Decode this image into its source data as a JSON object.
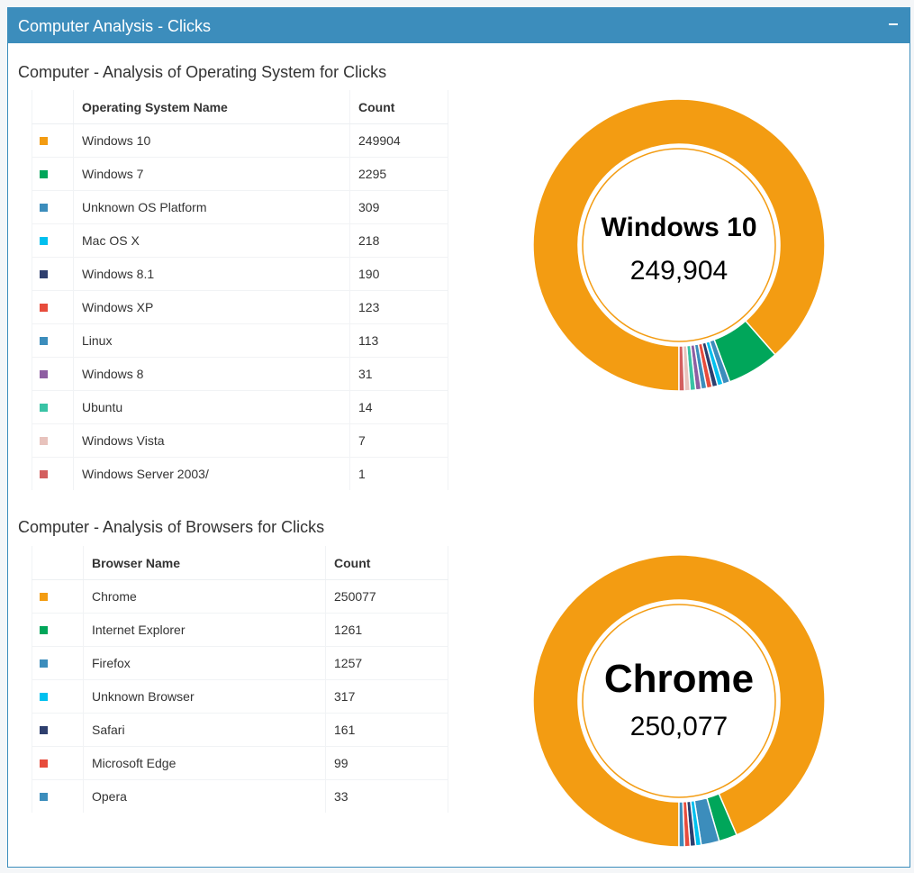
{
  "panel": {
    "title": "Computer Analysis - Clicks"
  },
  "os": {
    "title": "Computer - Analysis of Operating System for Clicks",
    "headers": {
      "name": "Operating System Name",
      "count": "Count"
    },
    "rows": [
      {
        "name": "Windows 10",
        "count": "249904",
        "color": "#f39c12"
      },
      {
        "name": "Windows 7",
        "count": "2295",
        "color": "#00a65a"
      },
      {
        "name": "Unknown OS Platform",
        "count": "309",
        "color": "#3c8dbc"
      },
      {
        "name": "Mac OS X",
        "count": "218",
        "color": "#00c0ef"
      },
      {
        "name": "Windows 8.1",
        "count": "190",
        "color": "#2e3f6e"
      },
      {
        "name": "Windows XP",
        "count": "123",
        "color": "#e74c3c"
      },
      {
        "name": "Linux",
        "count": "113",
        "color": "#3c8dbc"
      },
      {
        "name": "Windows 8",
        "count": "31",
        "color": "#8e5ea2"
      },
      {
        "name": "Ubuntu",
        "count": "14",
        "color": "#39c3a5"
      },
      {
        "name": "Windows Vista",
        "count": "7",
        "color": "#e8c3bd"
      },
      {
        "name": "Windows Server 2003/",
        "count": "1",
        "color": "#d35f5f"
      }
    ]
  },
  "browser": {
    "title": "Computer - Analysis of Browsers for Clicks",
    "headers": {
      "name": "Browser Name",
      "count": "Count"
    },
    "rows": [
      {
        "name": "Chrome",
        "count": "250077",
        "color": "#f39c12"
      },
      {
        "name": "Internet Explorer",
        "count": "1261",
        "color": "#00a65a"
      },
      {
        "name": "Firefox",
        "count": "1257",
        "color": "#3c8dbc"
      },
      {
        "name": "Unknown Browser",
        "count": "317",
        "color": "#00c0ef"
      },
      {
        "name": "Safari",
        "count": "161",
        "color": "#2e3f6e"
      },
      {
        "name": "Microsoft Edge",
        "count": "99",
        "color": "#e74c3c"
      },
      {
        "name": "Opera",
        "count": "33",
        "color": "#3c8dbc"
      }
    ]
  },
  "chart_data": [
    {
      "type": "pie",
      "center_label": "Windows 10",
      "center_value": "249,904",
      "categories": [
        "Windows 10",
        "Windows 7",
        "Unknown OS Platform",
        "Mac OS X",
        "Windows 8.1",
        "Windows XP",
        "Linux",
        "Windows 8",
        "Ubuntu",
        "Windows Vista",
        "Windows Server 2003/"
      ],
      "values": [
        249904,
        2295,
        309,
        218,
        190,
        123,
        113,
        31,
        14,
        7,
        1
      ],
      "colors": [
        "#f39c12",
        "#00a65a",
        "#3c8dbc",
        "#00c0ef",
        "#2e3f6e",
        "#e74c3c",
        "#3c8dbc",
        "#8e5ea2",
        "#39c3a5",
        "#e8c3bd",
        "#d35f5f"
      ]
    },
    {
      "type": "pie",
      "center_label": "Chrome",
      "center_value": "250,077",
      "categories": [
        "Chrome",
        "Internet Explorer",
        "Firefox",
        "Unknown Browser",
        "Safari",
        "Microsoft Edge",
        "Opera"
      ],
      "values": [
        250077,
        1261,
        1257,
        317,
        161,
        99,
        33
      ],
      "colors": [
        "#f39c12",
        "#00a65a",
        "#3c8dbc",
        "#00c0ef",
        "#2e3f6e",
        "#e74c3c",
        "#3c8dbc"
      ]
    }
  ]
}
